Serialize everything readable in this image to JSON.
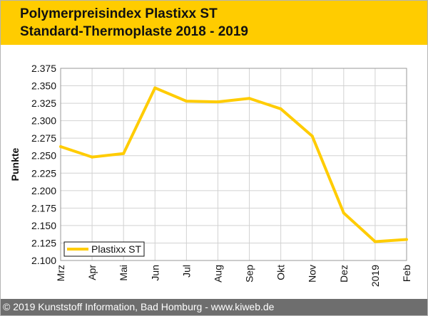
{
  "header": {
    "title_line1": "Polymerpreisindex Plastixx ST",
    "title_line2": "Standard-Thermoplaste 2018 - 2019"
  },
  "footer": {
    "text": "© 2019 Kunststoff Information, Bad Homburg - www.kiweb.de"
  },
  "colors": {
    "header_bg": "#ffcc00",
    "series": "#ffcc00",
    "footer_bg": "#6e6e6e",
    "grid": "#d2d2d2"
  },
  "chart_data": {
    "type": "line",
    "title": "Polymerpreisindex Plastixx ST Standard-Thermoplaste 2018 - 2019",
    "xlabel": "",
    "ylabel": "Punkte",
    "categories": [
      "Mrz",
      "Apr",
      "Mai",
      "Jun",
      "Jul",
      "Aug",
      "Sep",
      "Okt",
      "Nov",
      "Dez",
      "2019",
      "Feb"
    ],
    "series": [
      {
        "name": "Plastixx ST",
        "values": [
          2.263,
          2.248,
          2.253,
          2.347,
          2.328,
          2.327,
          2.332,
          2.317,
          2.278,
          2.168,
          2.127,
          2.13
        ]
      }
    ],
    "ylim": [
      2.1,
      2.375
    ],
    "yticks": [
      "2.100",
      "2.125",
      "2.150",
      "2.175",
      "2.200",
      "2.225",
      "2.250",
      "2.275",
      "2.300",
      "2.325",
      "2.350",
      "2.375"
    ],
    "grid": true,
    "legend_position": "bottom-left"
  }
}
